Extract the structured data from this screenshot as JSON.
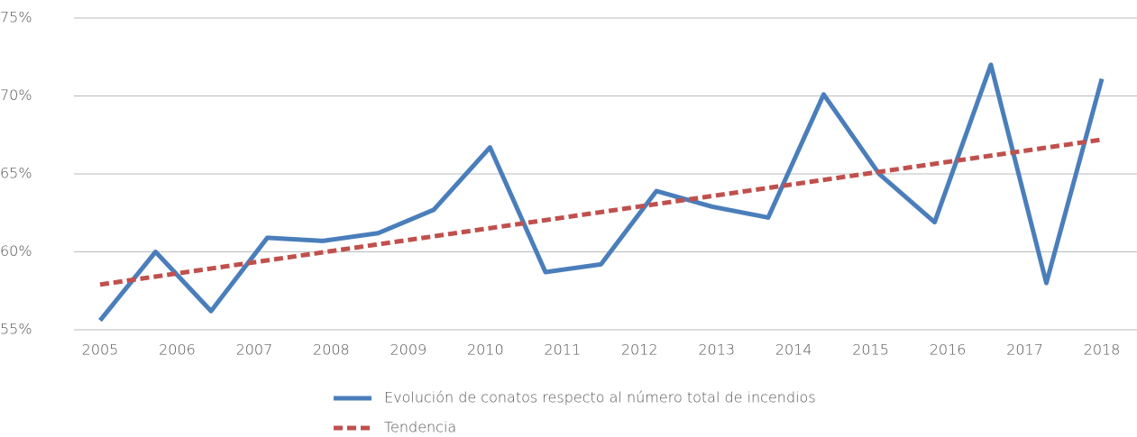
{
  "chart_data": {
    "type": "line",
    "x": [
      2005,
      2005.72,
      2006.44,
      2007.17,
      2007.89,
      2008.61,
      2009.33,
      2010.06,
      2010.78,
      2011.5,
      2012.22,
      2012.94,
      2013.67,
      2014.39,
      2015.11,
      2015.83,
      2016.56,
      2017.28,
      2018
    ],
    "series": [
      {
        "name": "Evolución de conatos respecto al número total de incendios",
        "color": "#4a7ebb",
        "style": "solid",
        "x": [
          2005,
          2005.72,
          2006.44,
          2007.17,
          2007.89,
          2008.61,
          2009.33,
          2010.06,
          2010.78,
          2011.5,
          2012.22,
          2012.94,
          2013.67,
          2014.39,
          2015.11,
          2015.83,
          2016.56,
          2017.28,
          2018
        ],
        "values": [
          55.6,
          60.0,
          56.2,
          60.9,
          60.7,
          61.2,
          62.7,
          66.7,
          58.7,
          59.2,
          63.9,
          62.9,
          62.2,
          70.1,
          65.0,
          61.9,
          72.0,
          58.0,
          71.1
        ]
      },
      {
        "name": "Tendencia",
        "color": "#c0504d",
        "style": "dashed",
        "x": [
          2005,
          2018
        ],
        "values": [
          57.9,
          67.2
        ]
      }
    ],
    "xlim": [
      2005,
      2018
    ],
    "xticks": [
      2005,
      2006,
      2007,
      2008,
      2009,
      2010,
      2011,
      2012,
      2013,
      2014,
      2015,
      2016,
      2017,
      2018
    ],
    "ylim": [
      55,
      75
    ],
    "yticks": [
      {
        "value": 55,
        "label": "55%"
      },
      {
        "value": 60,
        "label": "60%"
      },
      {
        "value": 65,
        "label": "65%"
      },
      {
        "value": 70,
        "label": "70%"
      },
      {
        "value": 75,
        "label": "75%"
      }
    ],
    "grid": true,
    "legend": "bottom"
  }
}
